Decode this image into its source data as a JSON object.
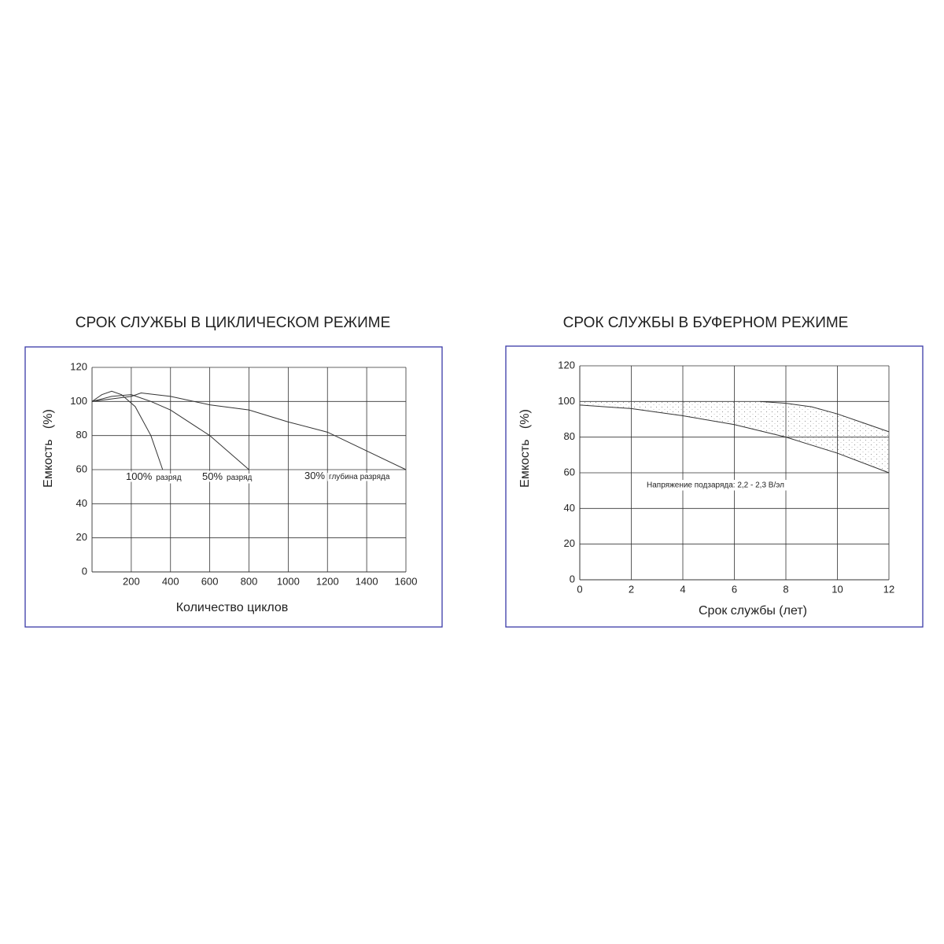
{
  "chart_data": [
    {
      "type": "line",
      "title": "СРОК СЛУЖБЫ В ЦИКЛИЧЕСКОМ РЕЖИМЕ",
      "x_label": "Количество циклов",
      "y_label": "Емкость   (%)",
      "xlim": [
        0,
        1600
      ],
      "xticks": [
        200,
        400,
        600,
        800,
        1000,
        1200,
        1400,
        1600
      ],
      "ylim": [
        0,
        120
      ],
      "yticks": [
        0,
        20,
        40,
        60,
        80,
        100,
        120
      ],
      "grid": true,
      "series": [
        {
          "name": "100%",
          "note": "разряд",
          "color": "#333333",
          "x": [
            0,
            50,
            100,
            150,
            220,
            300,
            360
          ],
          "values": [
            100,
            104,
            106,
            104,
            97,
            80,
            60
          ]
        },
        {
          "name": "50%",
          "note": "разряд",
          "color": "#333333",
          "x": [
            0,
            100,
            200,
            300,
            400,
            600,
            800
          ],
          "values": [
            100,
            103,
            104,
            100,
            95,
            80,
            60
          ]
        },
        {
          "name": "30%",
          "note": "глубина разряда",
          "color": "#333333",
          "x": [
            0,
            200,
            250,
            400,
            600,
            800,
            1000,
            1200,
            1600
          ],
          "values": [
            100,
            103,
            105,
            103,
            98,
            95,
            88,
            82,
            60
          ]
        }
      ]
    },
    {
      "type": "line",
      "title": "СРОК СЛУЖБЫ В БУФЕРНОМ РЕЖИМЕ",
      "x_label": "Срок службы (лет)",
      "y_label": "Емкость   (%)",
      "annotation": "Напряжение подзаряда: 2,2 - 2,3 В/эл",
      "xlim": [
        0,
        12
      ],
      "xticks": [
        0,
        2,
        4,
        6,
        8,
        10,
        12
      ],
      "ylim": [
        0,
        120
      ],
      "yticks": [
        0,
        20,
        40,
        60,
        80,
        100,
        120
      ],
      "grid": true,
      "shade_between": true,
      "series": [
        {
          "color": "#333333",
          "x": [
            7,
            8,
            9,
            10,
            11,
            12
          ],
          "values": [
            100,
            99,
            97,
            93,
            88,
            83
          ]
        },
        {
          "color": "#333333",
          "x": [
            0,
            2,
            4,
            6,
            8,
            10,
            12
          ],
          "values": [
            98,
            96,
            92,
            87,
            80,
            71,
            60
          ]
        }
      ]
    }
  ]
}
